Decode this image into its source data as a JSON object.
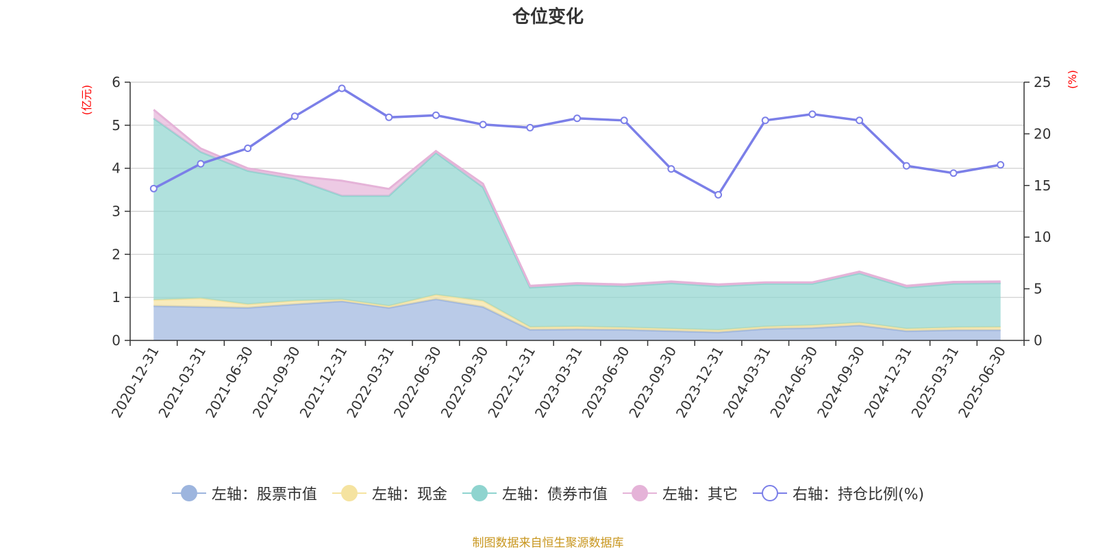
{
  "chart_data": {
    "type": "area",
    "title": "仓位变化",
    "left_axis_unit": "(亿元)",
    "right_axis_unit": "(%)",
    "left_ylim": [
      0,
      6
    ],
    "left_ticks": [
      "0",
      "1",
      "2",
      "3",
      "4",
      "5",
      "6"
    ],
    "right_ylim": [
      0,
      25
    ],
    "right_ticks": [
      "0",
      "5",
      "10",
      "15",
      "20",
      "25"
    ],
    "stacked": true,
    "grid": true,
    "legend_position": "bottom",
    "categories": [
      "2020-12-31",
      "2021-03-31",
      "2021-06-30",
      "2021-09-30",
      "2021-12-31",
      "2022-03-31",
      "2022-06-30",
      "2022-09-30",
      "2022-12-31",
      "2023-03-31",
      "2023-06-30",
      "2023-09-30",
      "2023-12-31",
      "2024-03-31",
      "2024-06-30",
      "2024-09-30",
      "2024-12-31",
      "2025-03-31",
      "2025-06-30"
    ],
    "series": [
      {
        "name": "左轴：股票市值",
        "axis": "left",
        "kind": "area",
        "color": "#9db5de",
        "values": [
          0.8,
          0.78,
          0.76,
          0.84,
          0.91,
          0.76,
          0.96,
          0.78,
          0.25,
          0.26,
          0.25,
          0.22,
          0.19,
          0.27,
          0.29,
          0.35,
          0.22,
          0.24,
          0.24
        ]
      },
      {
        "name": "左轴：现金",
        "axis": "left",
        "kind": "area",
        "color": "#f5e3a0",
        "values": [
          0.14,
          0.2,
          0.08,
          0.08,
          0.04,
          0.04,
          0.1,
          0.14,
          0.06,
          0.06,
          0.05,
          0.05,
          0.05,
          0.05,
          0.06,
          0.06,
          0.05,
          0.06,
          0.07
        ]
      },
      {
        "name": "左轴：债券市值",
        "axis": "left",
        "kind": "area",
        "color": "#8fd4cf",
        "values": [
          4.22,
          3.4,
          3.1,
          2.83,
          2.41,
          2.56,
          3.3,
          2.64,
          0.92,
          0.97,
          0.96,
          1.06,
          1.02,
          1.0,
          0.97,
          1.15,
          0.96,
          1.02,
          1.02
        ]
      },
      {
        "name": "左轴：其它",
        "axis": "left",
        "kind": "area",
        "color": "#e5b3d8",
        "values": [
          0.2,
          0.08,
          0.06,
          0.07,
          0.35,
          0.16,
          0.04,
          0.08,
          0.04,
          0.04,
          0.04,
          0.04,
          0.04,
          0.03,
          0.03,
          0.04,
          0.04,
          0.04,
          0.04
        ]
      },
      {
        "name": "右轴：持仓比例(%)",
        "axis": "right",
        "kind": "line",
        "color": "#7b7fe8",
        "values": [
          14.7,
          17.1,
          18.6,
          21.7,
          24.4,
          21.6,
          21.8,
          20.9,
          20.6,
          21.5,
          21.3,
          16.6,
          14.1,
          21.3,
          21.9,
          21.3,
          16.9,
          16.2,
          17.0
        ]
      }
    ],
    "source_note": "制图数据来自恒生聚源数据库"
  }
}
